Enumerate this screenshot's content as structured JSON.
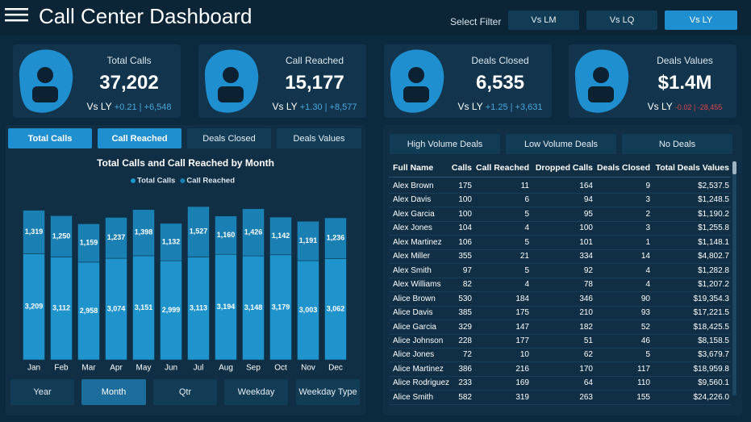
{
  "header": {
    "title": "Call Center Dashboard",
    "filter_label": "Select Filter",
    "filter_buttons": [
      "Vs LM",
      "Vs LQ",
      "Vs LY"
    ]
  },
  "kpis": [
    {
      "title": "Total Calls",
      "value": "37,202",
      "compare": "Vs LY",
      "change": "+0.21 | +6,548"
    },
    {
      "title": "Call Reached",
      "value": "15,177",
      "compare": "Vs LY",
      "change": "+1.30 | +8,577"
    },
    {
      "title": "Deals Closed",
      "value": "6,535",
      "compare": "Vs LY",
      "change": "+1.25 | +3,631"
    },
    {
      "title": "Deals Values",
      "value": "$1.4M",
      "compare": "Vs LY",
      "change": "-0.02 | -28,455"
    }
  ],
  "chart_tabs": [
    "Total Calls",
    "Call Reached",
    "Deals Closed",
    "Deals Values"
  ],
  "chart_data": {
    "type": "stacked_bar",
    "title": "Total Calls and Call Reached by Month",
    "categories": [
      "Jan",
      "Feb",
      "Mar",
      "Apr",
      "May",
      "Jun",
      "Jul",
      "Aug",
      "Sep",
      "Oct",
      "Nov",
      "Dec"
    ],
    "series": [
      {
        "name": "Total Calls",
        "color": "#1f93cc",
        "values": [
          3209,
          3112,
          2958,
          3074,
          3151,
          2999,
          3113,
          3194,
          3148,
          3179,
          3003,
          3062
        ],
        "value_labels": [
          "3,209",
          "3,112",
          "2,958",
          "3,074",
          "3,151",
          "2,999",
          "3,113",
          "3,194",
          "3,148",
          "3,179",
          "3,003",
          "3,062"
        ]
      },
      {
        "name": "Call Reached",
        "color": "#1a7fb2",
        "values": [
          1319,
          1250,
          1159,
          1237,
          1398,
          1132,
          1527,
          1160,
          1426,
          1142,
          1191,
          1236
        ],
        "value_labels": [
          "1,319",
          "1,250",
          "1,159",
          "1,237",
          "1,398",
          "1,132",
          "1,527",
          "1,160",
          "1,426",
          "1,142",
          "1,191",
          "1,236"
        ]
      }
    ]
  },
  "period_buttons": [
    "Year",
    "Month",
    "Qtr",
    "Weekday",
    "Weekday Type"
  ],
  "table_tabs": [
    "High Volume Deals",
    "Low Volume Deals",
    "No Deals"
  ],
  "table": {
    "columns": [
      "Full Name",
      "Calls",
      "Call Reached",
      "Dropped Calls",
      "Deals Closed",
      "Total Deals Values"
    ],
    "rows": [
      [
        "Alex Brown",
        "175",
        "11",
        "164",
        "9",
        "$2,537.5"
      ],
      [
        "Alex Davis",
        "100",
        "6",
        "94",
        "3",
        "$1,248.5"
      ],
      [
        "Alex Garcia",
        "100",
        "5",
        "95",
        "2",
        "$1,190.2"
      ],
      [
        "Alex Jones",
        "104",
        "4",
        "100",
        "3",
        "$1,255.8"
      ],
      [
        "Alex Martinez",
        "106",
        "5",
        "101",
        "1",
        "$1,148.1"
      ],
      [
        "Alex Miller",
        "355",
        "21",
        "334",
        "14",
        "$4,802.7"
      ],
      [
        "Alex Smith",
        "97",
        "5",
        "92",
        "4",
        "$1,282.8"
      ],
      [
        "Alex Williams",
        "82",
        "4",
        "78",
        "4",
        "$1,207.2"
      ],
      [
        "Alice Brown",
        "530",
        "184",
        "346",
        "90",
        "$19,354.3"
      ],
      [
        "Alice Davis",
        "385",
        "175",
        "210",
        "93",
        "$17,221.5"
      ],
      [
        "Alice Garcia",
        "329",
        "147",
        "182",
        "52",
        "$18,425.5"
      ],
      [
        "Alice Johnson",
        "228",
        "177",
        "51",
        "46",
        "$8,158.5"
      ],
      [
        "Alice Jones",
        "72",
        "10",
        "62",
        "5",
        "$3,679.7"
      ],
      [
        "Alice Martinez",
        "386",
        "216",
        "170",
        "117",
        "$18,959.8"
      ],
      [
        "Alice Rodriguez",
        "233",
        "169",
        "64",
        "110",
        "$9,560.1"
      ],
      [
        "Alice Smith",
        "582",
        "319",
        "263",
        "155",
        "$24,226.0"
      ]
    ]
  }
}
